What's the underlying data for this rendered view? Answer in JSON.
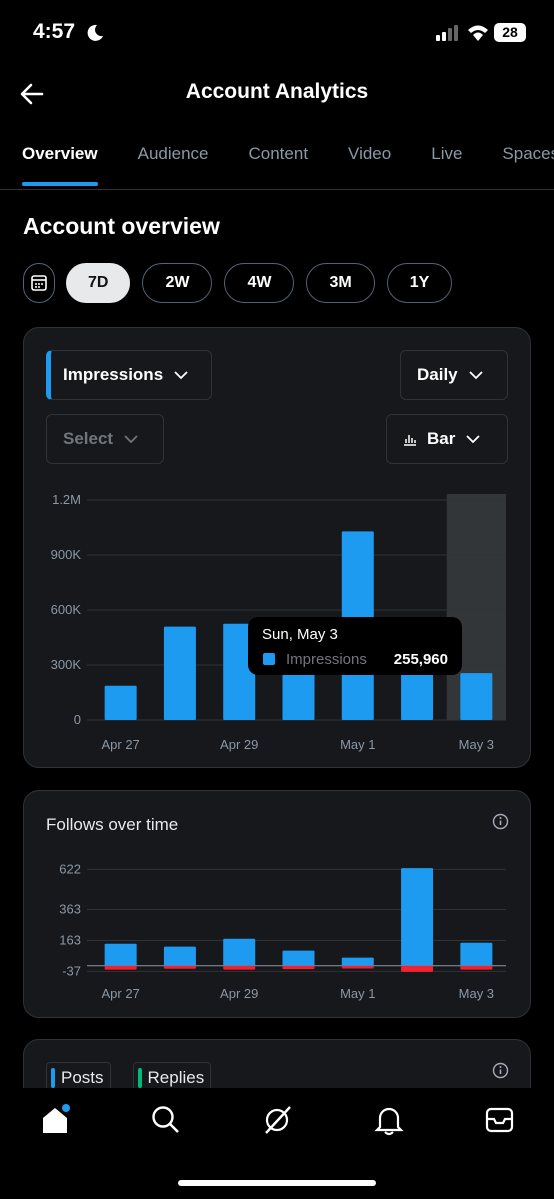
{
  "status_bar": {
    "time": "4:57",
    "battery": "28"
  },
  "header": {
    "title": "Account Analytics"
  },
  "tabs": {
    "items": [
      "Overview",
      "Audience",
      "Content",
      "Video",
      "Live",
      "Spaces"
    ],
    "active": 0
  },
  "overview": {
    "title": "Account overview",
    "ranges": [
      "7D",
      "2W",
      "4W",
      "3M",
      "1Y"
    ],
    "active_range": 0
  },
  "impressions_card": {
    "metric": "Impressions",
    "interval": "Daily",
    "compare": "Select",
    "chart_type": "Bar",
    "chart_data": {
      "type": "bar",
      "categories": [
        "Apr 27",
        null,
        "Apr 29",
        null,
        "May 1",
        null,
        "May 3"
      ],
      "values": [
        187000,
        509000,
        525000,
        300000,
        1029000,
        290000,
        255960
      ],
      "color": "#1d9bf0",
      "ylim": [
        0,
        1200000
      ],
      "yticks": [
        0,
        {
          "value": 300000,
          "label": "300K"
        },
        {
          "value": 600000,
          "label": "600K"
        },
        {
          "value": 900000,
          "label": "900K"
        },
        {
          "value": 1200000,
          "label": "1.2M"
        }
      ],
      "grid": true,
      "highlight": 6,
      "tooltip": {
        "date": "Sun, May 3",
        "series": "Impressions",
        "value_label": "255,960"
      }
    }
  },
  "follows_card": {
    "title": "Follows over time",
    "chart_data": {
      "type": "bar",
      "categories": [
        "Apr 27",
        null,
        "Apr 29",
        null,
        "May 1",
        null,
        "May 3"
      ],
      "series": [
        {
          "color": "#1d9bf0",
          "values": [
            142,
            123,
            174,
            97,
            52,
            630,
            148
          ]
        },
        {
          "color": "#f4212e",
          "values": [
            -25,
            -20,
            -25,
            -22,
            -18,
            -40,
            -25
          ]
        }
      ],
      "ylim": [
        -60,
        650
      ],
      "yticks": [
        -37,
        163,
        363,
        622
      ],
      "grid": true
    }
  },
  "posts_card": {
    "legend": [
      {
        "name": "Posts",
        "color": "#1d9bf0"
      },
      {
        "name": "Replies",
        "color": "#00ba7c"
      }
    ]
  }
}
